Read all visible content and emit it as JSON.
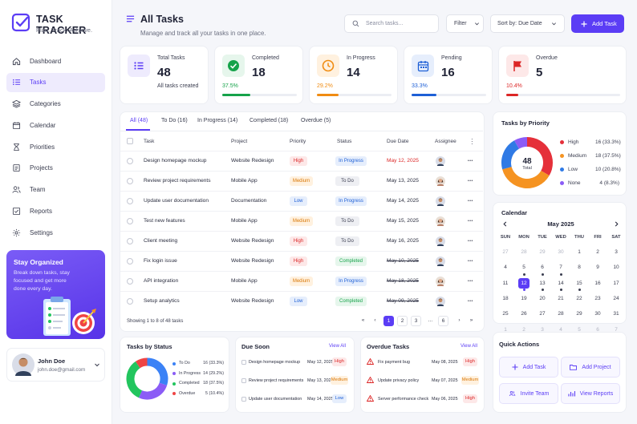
{
  "app": {
    "title": "TASK TRACKER",
    "tagline": "Plan. Track. Achieve."
  },
  "sidebar": {
    "items": [
      {
        "label": "Dashboard",
        "icon": "home-icon"
      },
      {
        "label": "Tasks",
        "icon": "list-icon",
        "active": true
      },
      {
        "label": "Categories",
        "icon": "layers-icon"
      },
      {
        "label": "Calendar",
        "icon": "calendar-icon"
      },
      {
        "label": "Priorities",
        "icon": "hourglass-icon"
      },
      {
        "label": "Projects",
        "icon": "document-icon"
      },
      {
        "label": "Team",
        "icon": "team-icon"
      },
      {
        "label": "Reports",
        "icon": "checkbox-icon"
      },
      {
        "label": "Settings",
        "icon": "gear-icon"
      }
    ],
    "promo": {
      "title": "Stay Organized",
      "text": "Break down tasks, stay focused and get more done every day."
    },
    "user": {
      "name": "John Doe",
      "email": "john.doe@gmail.com"
    }
  },
  "header": {
    "title": "All Tasks",
    "subtitle": "Manage and track all your tasks in one place.",
    "search_placeholder": "Search tasks...",
    "filter_label": "Filter",
    "sort_label": "Sort by: Due Date",
    "add_label": "Add Task"
  },
  "stats": [
    {
      "title": "Total Tasks",
      "value": "48",
      "note": "All tasks created",
      "color": "#5b3df5",
      "bg": "#eeebfd",
      "icon": "list-icon"
    },
    {
      "title": "Completed",
      "value": "18",
      "note": "37.5%",
      "fraction": 0.375,
      "color": "#16a34a",
      "bg": "#e6f6ec",
      "icon": "check-circle-icon"
    },
    {
      "title": "In Progress",
      "value": "14",
      "note": "29.2%",
      "fraction": 0.292,
      "color": "#f08c12",
      "bg": "#fff1df",
      "icon": "clock-icon"
    },
    {
      "title": "Pending",
      "value": "16",
      "note": "33.3%",
      "fraction": 0.333,
      "color": "#1d5fd6",
      "bg": "#e6eefc",
      "icon": "calendar-icon"
    },
    {
      "title": "Overdue",
      "value": "5",
      "note": "10.4%",
      "fraction": 0.104,
      "color": "#dc2626",
      "bg": "#fde8e8",
      "icon": "flag-icon"
    }
  ],
  "tabs": [
    "All (48)",
    "To Do (16)",
    "In Progress (14)",
    "Completed (18)",
    "Overdue (5)"
  ],
  "table": {
    "columns": [
      "Task",
      "Project",
      "Priority",
      "Status",
      "Due Date",
      "Assignee"
    ],
    "rows": [
      {
        "task": "Design homepage mockup",
        "project": "Website Redesign",
        "priority": "High",
        "status": "In Progress",
        "due": "May 12, 2025",
        "due_state": "overdue",
        "assignee": "male"
      },
      {
        "task": "Review project requirements",
        "project": "Mobile App",
        "priority": "Medium",
        "status": "To Do",
        "due": "May 13, 2025",
        "due_state": "normal",
        "assignee": "female"
      },
      {
        "task": "Update user documentation",
        "project": "Documentation",
        "priority": "Low",
        "status": "In Progress",
        "due": "May 14, 2025",
        "due_state": "normal",
        "assignee": "male"
      },
      {
        "task": "Test new features",
        "project": "Mobile App",
        "priority": "Medium",
        "status": "To Do",
        "due": "May 15, 2025",
        "due_state": "normal",
        "assignee": "female"
      },
      {
        "task": "Client meeting",
        "project": "Website Redesign",
        "priority": "High",
        "status": "To Do",
        "due": "May 16, 2025",
        "due_state": "normal",
        "assignee": "male"
      },
      {
        "task": "Fix login issue",
        "project": "Website Redesign",
        "priority": "High",
        "status": "Completed",
        "due": "May 10, 2025",
        "due_state": "done",
        "assignee": "male"
      },
      {
        "task": "API integration",
        "project": "Mobile App",
        "priority": "Medium",
        "status": "In Progress",
        "due": "May 18, 2025",
        "due_state": "done",
        "assignee": "female"
      },
      {
        "task": "Setup analytics",
        "project": "Website Redesign",
        "priority": "Low",
        "status": "Completed",
        "due": "May 09, 2025",
        "due_state": "done",
        "assignee": "male"
      }
    ],
    "footer": "Showing 1 to 8 of 48 tasks",
    "pages": [
      "1",
      "2",
      "3",
      "...",
      "6"
    ]
  },
  "priority_chart": {
    "title": "Tasks by Priority",
    "center_value": "48",
    "center_label": "Total",
    "items": [
      {
        "label": "High",
        "value": 16,
        "text": "16 (33.3%)",
        "color": "#e5303a"
      },
      {
        "label": "Medium",
        "value": 18,
        "text": "18 (37.5%)",
        "color": "#f59321"
      },
      {
        "label": "Low",
        "value": 10,
        "text": "10 (20.8%)",
        "color": "#2f7ae5"
      },
      {
        "label": "None",
        "value": 4,
        "text": "4 (8.3%)",
        "color": "#8b5cf6"
      }
    ]
  },
  "calendar": {
    "title": "Calendar",
    "month": "May 2025",
    "weekdays": [
      "SUN",
      "MON",
      "TUE",
      "WED",
      "THU",
      "FRI",
      "SAT"
    ],
    "first_weekday": 4,
    "days_in_month": 31,
    "prev_days": [
      27,
      28,
      29,
      30
    ],
    "next_days": [
      1,
      2,
      3,
      4,
      5,
      6,
      7
    ],
    "selected": 12,
    "events": [
      5,
      6,
      7,
      12,
      13,
      14,
      15
    ]
  },
  "status_chart": {
    "title": "Tasks by Status",
    "items": [
      {
        "label": "To Do",
        "value": 16,
        "text": "16 (33.3%)",
        "color": "#3b82f6"
      },
      {
        "label": "In Progress",
        "value": 14,
        "text": "14 (29.2%)",
        "color": "#8b5cf6"
      },
      {
        "label": "Completed",
        "value": 18,
        "text": "18 (37.5%)",
        "color": "#22c55e"
      },
      {
        "label": "Overdue",
        "value": 5,
        "text": "5 (10.4%)",
        "color": "#ef4444"
      }
    ]
  },
  "due_soon": {
    "title": "Due Soon",
    "view_all": "View All",
    "items": [
      {
        "task": "Design homepage mockup",
        "date": "May 12, 2025",
        "priority": "High"
      },
      {
        "task": "Review project requirements",
        "date": "May 13, 2025",
        "priority": "Medium"
      },
      {
        "task": "Update user documentation",
        "date": "May 14, 2025",
        "priority": "Low"
      }
    ]
  },
  "overdue": {
    "title": "Overdue Tasks",
    "view_all": "View All",
    "items": [
      {
        "task": "Fix payment bug",
        "date": "May 08, 2025",
        "priority": "High"
      },
      {
        "task": "Update privacy policy",
        "date": "May 07, 2025",
        "priority": "Medium"
      },
      {
        "task": "Server performance check",
        "date": "May 06, 2025",
        "priority": "High"
      }
    ]
  },
  "quick_actions": {
    "title": "Quick Actions",
    "items": [
      {
        "label": "Add Task",
        "icon": "plus-icon"
      },
      {
        "label": "Add Project",
        "icon": "folder-icon"
      },
      {
        "label": "Invite Team",
        "icon": "team-icon"
      },
      {
        "label": "View Reports",
        "icon": "chart-icon"
      }
    ]
  },
  "colors": {
    "accent": "#5b3df5",
    "high": "#e5303a",
    "medium": "#e8871b",
    "low": "#2f7ae5",
    "completed": "#16a34a"
  }
}
